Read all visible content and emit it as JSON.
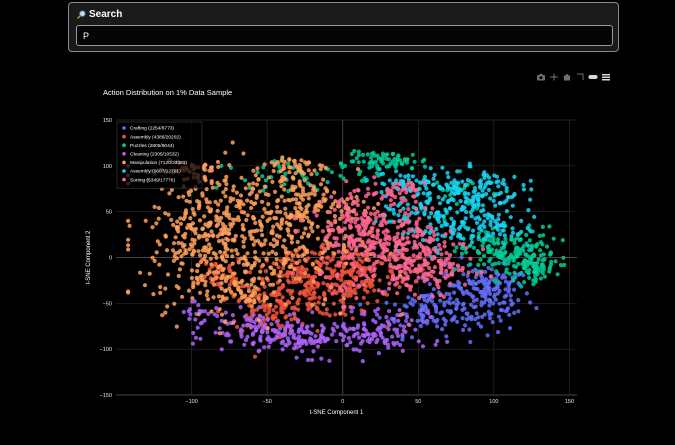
{
  "search": {
    "title": "Search",
    "value": "P",
    "icon": "magnifier-icon"
  },
  "modebar": {
    "icons": [
      "camera-icon",
      "pan-icon",
      "home-icon",
      "zoom-box-icon",
      "toggle-icon",
      "bars-icon"
    ]
  },
  "chart_data": {
    "type": "scatter",
    "title": "Action Distribution on 1% Data Sample",
    "xlabel": "t-SNE Component 1",
    "ylabel": "t-SNE Component 2",
    "xlim": [
      -150,
      155
    ],
    "ylim": [
      -150,
      150
    ],
    "xticks": [
      -100,
      -50,
      0,
      50,
      100,
      150
    ],
    "yticks": [
      -150,
      -100,
      -50,
      0,
      50,
      100,
      150
    ],
    "xtick_labels": [
      "−100",
      "−50",
      "0",
      "50",
      "100",
      "150"
    ],
    "ytick_labels": [
      "−150",
      "−100",
      "−50",
      "0",
      "50",
      "100",
      "150"
    ],
    "grid": true,
    "legend_position": "top-left",
    "series": [
      {
        "name": "Crafting (2254/8773)",
        "color": "#636efa",
        "clusters": [
          [
            90,
            -45,
            18,
            18,
            160
          ],
          [
            55,
            -55,
            15,
            15,
            90
          ],
          [
            100,
            -25,
            8,
            8,
            40
          ]
        ]
      },
      {
        "name": "Assembly (4386/20202)",
        "color": "#ef553b",
        "clusters": [
          [
            -20,
            -30,
            22,
            18,
            220
          ],
          [
            -50,
            -60,
            14,
            12,
            80
          ],
          [
            10,
            -15,
            18,
            18,
            140
          ],
          [
            -85,
            -20,
            10,
            10,
            40
          ]
        ]
      },
      {
        "name": "Puzzles (2805/9044)",
        "color": "#00cc96",
        "clusters": [
          [
            110,
            5,
            16,
            14,
            170
          ],
          [
            125,
            -10,
            8,
            8,
            60
          ],
          [
            30,
            105,
            14,
            5,
            70
          ],
          [
            -30,
            90,
            25,
            8,
            50
          ],
          [
            80,
            70,
            10,
            10,
            30
          ]
        ]
      },
      {
        "name": "Cleaning (2305/10532)",
        "color": "#ab63fa",
        "clusters": [
          [
            -20,
            -88,
            30,
            10,
            180
          ],
          [
            -60,
            -75,
            16,
            8,
            60
          ],
          [
            25,
            -75,
            15,
            12,
            60
          ],
          [
            -95,
            -60,
            8,
            8,
            20
          ]
        ]
      },
      {
        "name": "Manipulation (7120/33361)",
        "color": "#ffa15a",
        "clusters": [
          [
            -60,
            20,
            35,
            38,
            420
          ],
          [
            -95,
            30,
            14,
            35,
            150
          ],
          [
            -30,
            60,
            18,
            15,
            120
          ],
          [
            -100,
            95,
            10,
            8,
            40
          ],
          [
            -35,
            100,
            12,
            6,
            40
          ],
          [
            -70,
            -35,
            14,
            10,
            60
          ]
        ]
      },
      {
        "name": "Assembly (9607/12701)",
        "color": "#19d3f3",
        "clusters": [
          [
            70,
            50,
            22,
            22,
            220
          ],
          [
            90,
            75,
            14,
            10,
            80
          ],
          [
            40,
            80,
            10,
            8,
            40
          ],
          [
            105,
            30,
            8,
            8,
            30
          ]
        ]
      },
      {
        "name": "Sorting (5349/17776)",
        "color": "#ff6692",
        "clusters": [
          [
            30,
            5,
            22,
            25,
            300
          ],
          [
            10,
            45,
            15,
            15,
            110
          ],
          [
            60,
            -10,
            14,
            14,
            90
          ],
          [
            40,
            70,
            8,
            8,
            30
          ]
        ]
      }
    ]
  }
}
